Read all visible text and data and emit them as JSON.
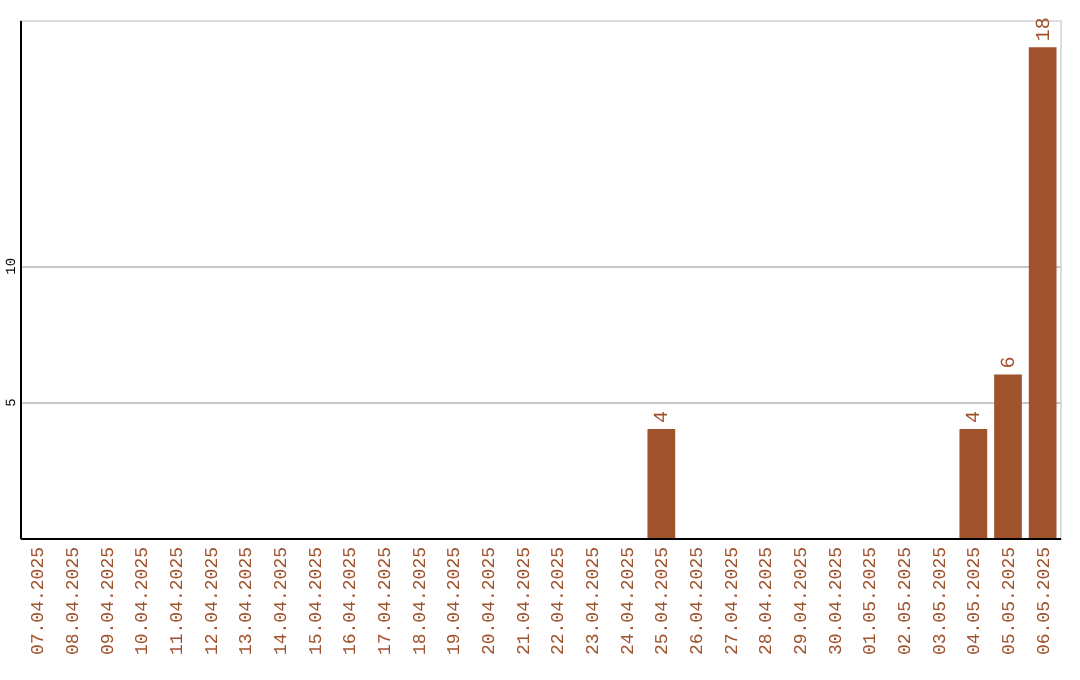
{
  "chart_data": {
    "type": "bar",
    "categories": [
      "07.04.2025",
      "08.04.2025",
      "09.04.2025",
      "10.04.2025",
      "11.04.2025",
      "12.04.2025",
      "13.04.2025",
      "14.04.2025",
      "15.04.2025",
      "16.04.2025",
      "17.04.2025",
      "18.04.2025",
      "19.04.2025",
      "20.04.2025",
      "21.04.2025",
      "22.04.2025",
      "23.04.2025",
      "24.04.2025",
      "25.04.2025",
      "26.04.2025",
      "27.04.2025",
      "28.04.2025",
      "29.04.2025",
      "30.04.2025",
      "01.05.2025",
      "02.05.2025",
      "03.05.2025",
      "04.05.2025",
      "05.05.2025",
      "06.05.2025"
    ],
    "values": [
      0,
      0,
      0,
      0,
      0,
      0,
      0,
      0,
      0,
      0,
      0,
      0,
      0,
      0,
      0,
      0,
      0,
      0,
      4,
      0,
      0,
      0,
      0,
      0,
      0,
      0,
      0,
      4,
      6,
      18
    ],
    "value_labels": [
      null,
      null,
      null,
      null,
      null,
      null,
      null,
      null,
      null,
      null,
      null,
      null,
      null,
      null,
      null,
      null,
      null,
      null,
      "4",
      null,
      null,
      null,
      null,
      null,
      null,
      null,
      null,
      "4",
      "6",
      "18"
    ],
    "color": "#a0522d",
    "ylim": [
      0,
      19
    ],
    "yticks": [
      5,
      10
    ],
    "grid": "y"
  }
}
